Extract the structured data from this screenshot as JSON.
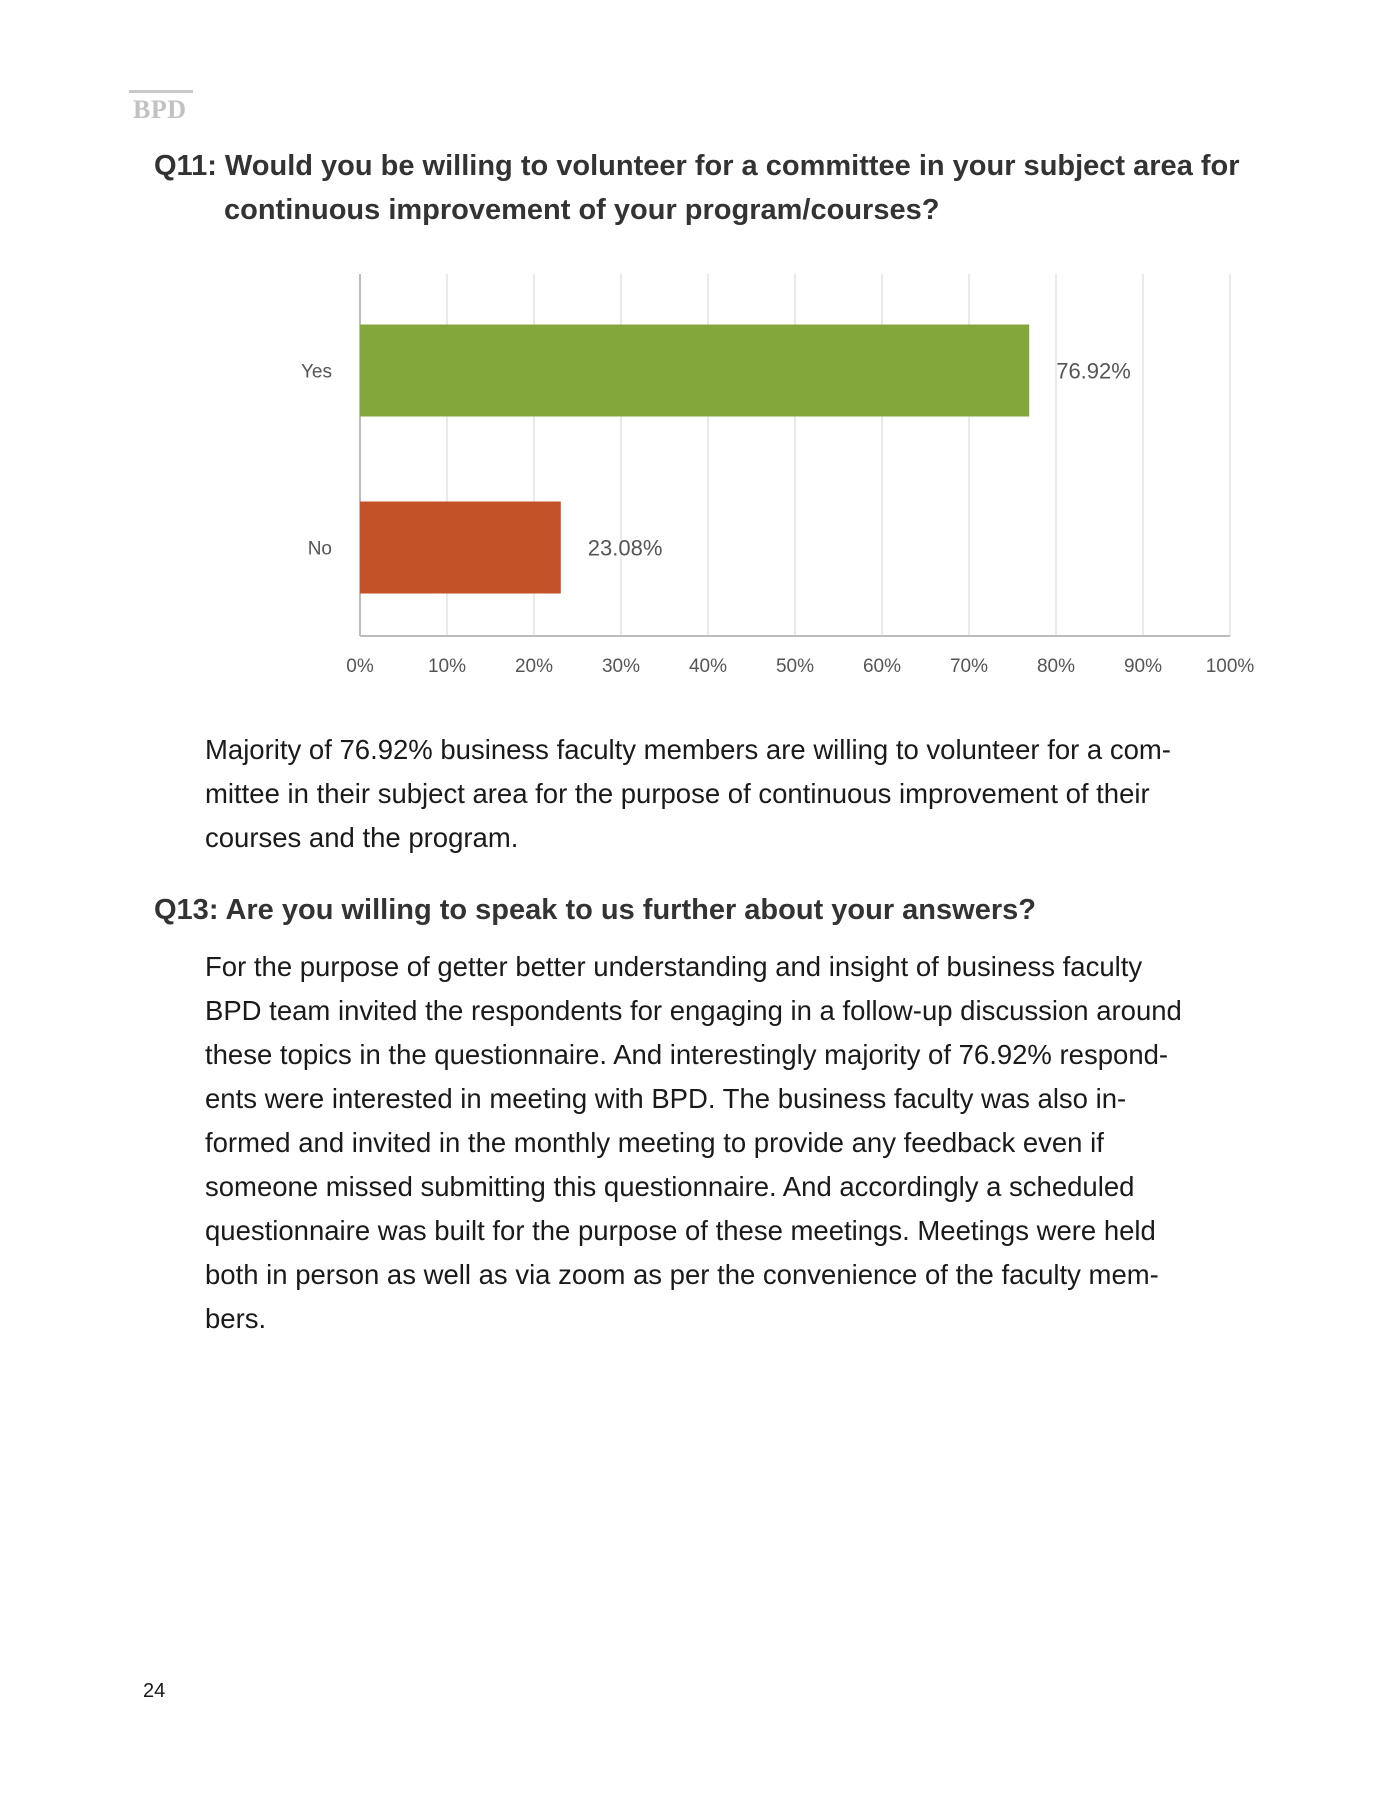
{
  "header": {
    "mark": "BPD"
  },
  "q11": {
    "line1": "Q11: Would you be willing to volunteer for a committee in your subject area for",
    "line2": "continuous improvement of your program/courses?"
  },
  "chart_data": {
    "type": "bar",
    "orientation": "horizontal",
    "categories": [
      "Yes",
      "No"
    ],
    "values": [
      76.92,
      23.08
    ],
    "data_labels": [
      "76.92%",
      "23.08%"
    ],
    "colors": [
      "#84a73c",
      "#c45228"
    ],
    "xlim": [
      0,
      100
    ],
    "x_ticks": [
      "0%",
      "10%",
      "20%",
      "30%",
      "40%",
      "50%",
      "60%",
      "70%",
      "80%",
      "90%",
      "100%"
    ],
    "grid": true,
    "title": "",
    "xlabel": "",
    "ylabel": ""
  },
  "p1": {
    "lines": [
      "Majority of 76.92% business faculty members are willing to volunteer for a com-",
      "mittee in their subject area for the purpose of continuous improvement of their",
      "courses and the program."
    ]
  },
  "q13": {
    "text": "Q13: Are you willing to speak to us further about your answers?"
  },
  "p2": {
    "lines": [
      "For the purpose of getter better understanding and insight of business faculty",
      "BPD team invited the respondents for engaging in a follow-up discussion around",
      "these topics in the questionnaire. And interestingly majority of 76.92% respond-",
      "ents were interested in meeting with BPD. The business faculty was also in-",
      "formed and invited in the monthly meeting to provide any feedback even if",
      "someone missed submitting this questionnaire. And accordingly a scheduled",
      "questionnaire was built for the purpose of these meetings. Meetings were held",
      "both in person as well as via zoom as per the convenience of the faculty mem-",
      "bers."
    ]
  },
  "footer": {
    "page_number": "24"
  }
}
